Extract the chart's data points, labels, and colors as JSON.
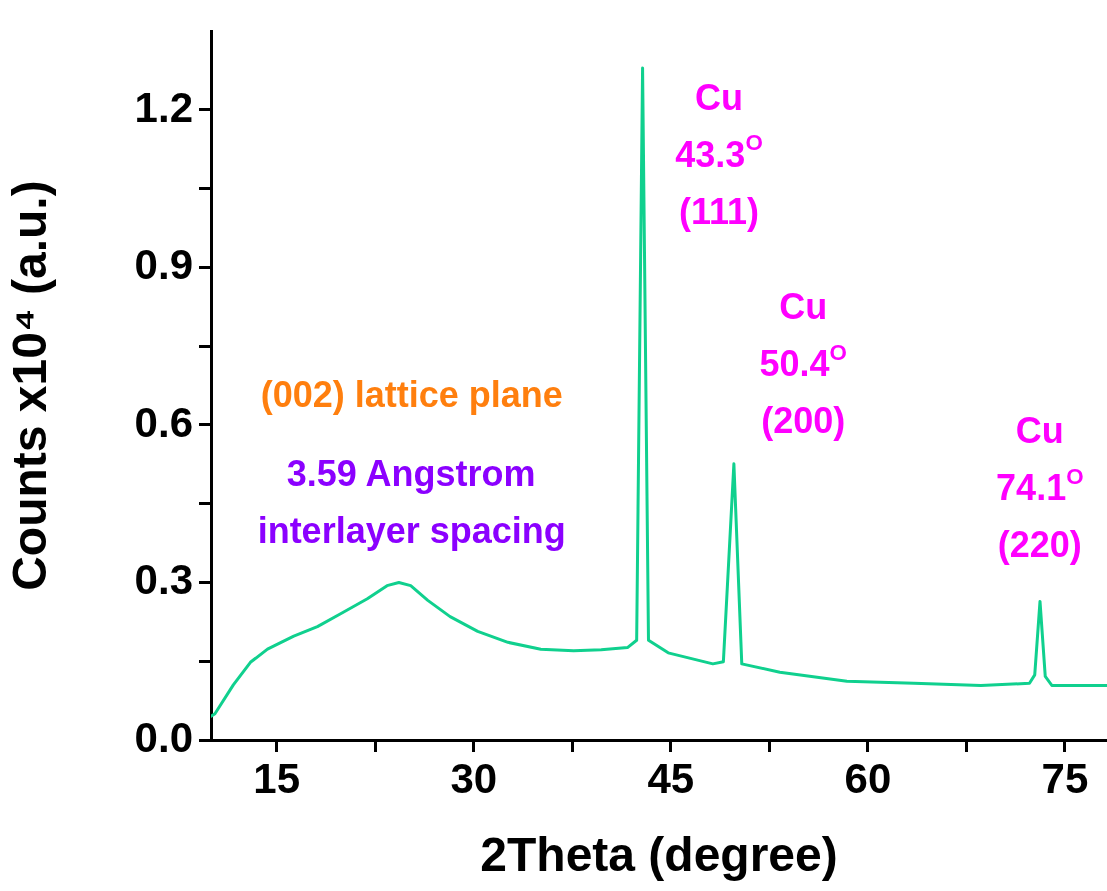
{
  "chart_data": {
    "type": "line",
    "xlabel": "2Theta (degree)",
    "ylabel": "Counts x10⁴ (a.u.)",
    "xlim": [
      10,
      78.2
    ],
    "ylim": [
      0,
      1.35
    ],
    "xticks": [
      15,
      {
        "value": 22.5,
        "label": null
      },
      30,
      {
        "value": 37.5,
        "label": null
      },
      45,
      {
        "value": 52.5,
        "label": null
      },
      60,
      {
        "value": 67.5,
        "label": null
      },
      75
    ],
    "yticks": [
      {
        "value": 0,
        "label": "0.0"
      },
      {
        "value": 0.15,
        "label": null
      },
      0.3,
      {
        "value": 0.45,
        "label": null
      },
      0.6,
      {
        "value": 0.75,
        "label": null
      },
      0.9,
      {
        "value": 1.05,
        "label": null
      },
      1.2
    ],
    "grid": false,
    "legend": false,
    "marker": "none",
    "line_style": "solid",
    "series": [
      {
        "color": "#10d08e",
        "x": [
          10,
          10.3,
          11.7,
          13.0,
          14.3,
          16.3,
          18.1,
          19.9,
          21.9,
          23.4,
          24.3,
          25.2,
          26.5,
          28.2,
          30.3,
          32.6,
          35.1,
          37.6,
          39.7,
          41.7,
          42.4,
          42.85,
          43.3,
          44.8,
          48.2,
          49.0,
          49.8,
          50.4,
          53.3,
          58.4,
          63.5,
          68.6,
          72.3,
          72.7,
          73.1,
          73.5,
          74.0,
          78.2
        ],
        "values": [
          0.045,
          0.05,
          0.105,
          0.148,
          0.173,
          0.198,
          0.216,
          0.241,
          0.269,
          0.294,
          0.3,
          0.294,
          0.266,
          0.235,
          0.207,
          0.186,
          0.173,
          0.17,
          0.172,
          0.176,
          0.19,
          1.28,
          0.19,
          0.166,
          0.145,
          0.149,
          0.526,
          0.145,
          0.129,
          0.112,
          0.108,
          0.104,
          0.108,
          0.124,
          0.264,
          0.121,
          0.104,
          0.104
        ]
      }
    ],
    "annotations": [
      "(002) lattice plane",
      "3.59 Angstrom",
      "interlayer spacing",
      "Cu",
      "43.3$^{O}$",
      "(111)",
      "Cu",
      "50.4$^{O}$",
      "(200)",
      "Cu",
      "74.1$^{O}$",
      "(220)"
    ]
  }
}
